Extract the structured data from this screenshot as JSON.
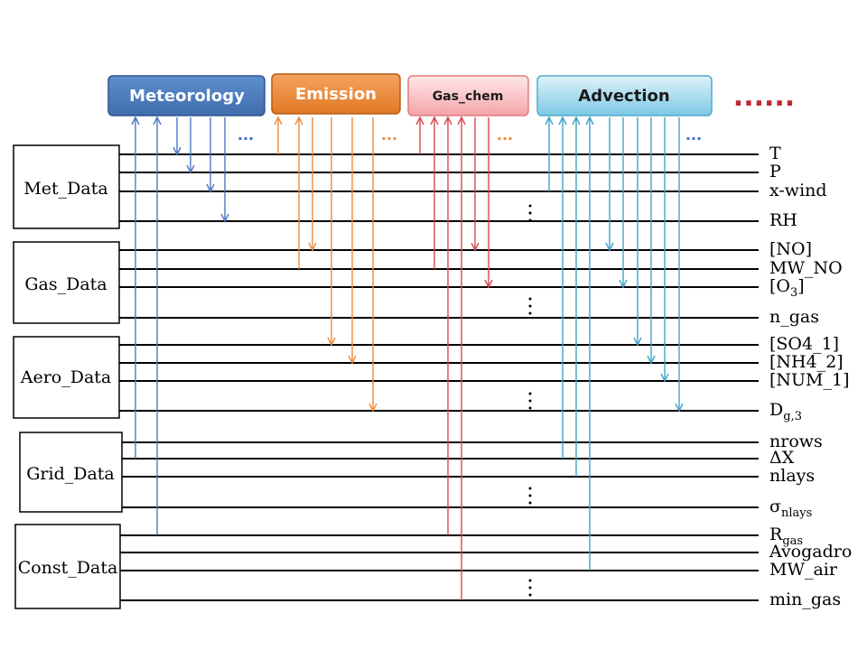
{
  "modules": [
    {
      "name": "Meteorology",
      "color": "#4f7fbd"
    },
    {
      "name": "Emission",
      "color": "#ee8a3a"
    },
    {
      "name": "Gas_chem",
      "color": "#f9b8bb"
    },
    {
      "name": "Advection",
      "color": "#8ed2ea"
    }
  ],
  "more_modules": "......",
  "module_more_markers": [
    "...",
    "...",
    "...",
    "..."
  ],
  "data_boxes": [
    "Met_Data",
    "Gas_Data",
    "Aero_Data",
    "Grid_Data",
    "Const_Data"
  ],
  "variables": [
    {
      "text": "T"
    },
    {
      "text": "P"
    },
    {
      "text": "x-wind"
    },
    {
      "text": "RH"
    },
    {
      "text": "[NO]"
    },
    {
      "text": "MW_NO"
    },
    {
      "text": "[O",
      "sub": "3",
      "after": "]"
    },
    {
      "text": "n_gas"
    },
    {
      "text": "[SO4_1]"
    },
    {
      "text": "[NH4_2]"
    },
    {
      "text": "[NUM_1]"
    },
    {
      "text": "D",
      "sub": "g,3"
    },
    {
      "text": "nrows"
    },
    {
      "text": "ΔX"
    },
    {
      "text": "nlays"
    },
    {
      "text": "σ",
      "sub": "nlays"
    },
    {
      "text": "R",
      "sub": "gas"
    },
    {
      "text": "Avogadro"
    },
    {
      "text": "MW_air"
    },
    {
      "text": "min_gas"
    }
  ],
  "group_ellipsis": "⋮",
  "colors": {
    "meteorology_line": "#4a79c0",
    "emission_line": "#ee8a3a",
    "gas_chem_line": "#d9474d",
    "advection_line": "#41a3c9",
    "dots_blue": "#3a6fd0",
    "dots_orange": "#ee8a3a",
    "more_modules": "#c0282f"
  }
}
